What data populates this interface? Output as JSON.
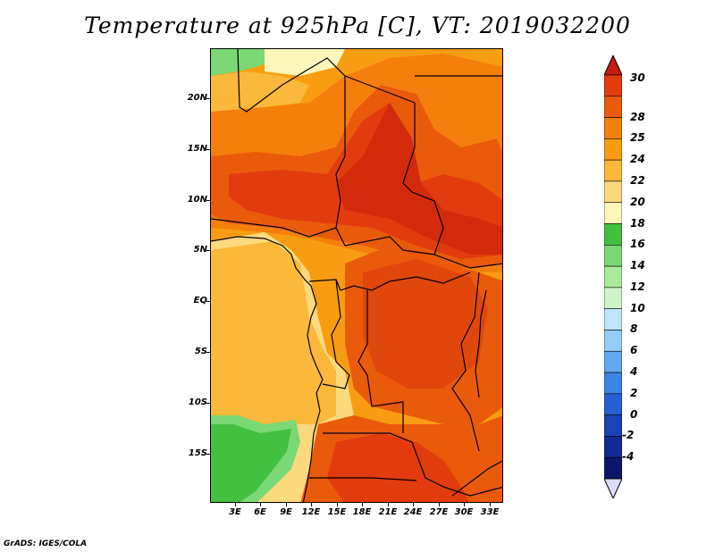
{
  "title": "Temperature at 925hPa [C], VT: 2019032200",
  "credit": "GrADS: IGES/COLA",
  "map": {
    "type": "filled-contour",
    "variable": "Temperature at 925hPa",
    "units": "C",
    "valid_time": "2019032200",
    "lat_ticks": [
      "20N",
      "15N",
      "10N",
      "5N",
      "EQ",
      "5S",
      "10S",
      "15S"
    ],
    "lon_ticks": [
      "3E",
      "6E",
      "9E",
      "12E",
      "15E",
      "18E",
      "21E",
      "24E",
      "27E",
      "30E",
      "33E"
    ],
    "lon_range": [
      0,
      34.5
    ],
    "lat_range": [
      -20,
      24.5
    ]
  },
  "colorbar": {
    "labels": [
      "30",
      "28",
      "25",
      "24",
      "22",
      "20",
      "18",
      "16",
      "14",
      "12",
      "10",
      "8",
      "6",
      "4",
      "2",
      "0",
      "-2",
      "-4"
    ],
    "colors": [
      "#e23b0e",
      "#ea5a0b",
      "#f57f0c",
      "#f89d12",
      "#fbb83a",
      "#fdd97e",
      "#fdf6ba",
      "#44c040",
      "#7ad875",
      "#a9ea9b",
      "#cdf5c5",
      "#bde5fb",
      "#93cdf7",
      "#62a9f1",
      "#3d84e4",
      "#2461d2",
      "#1a44b6",
      "#122a93",
      "#0b1569"
    ],
    "top_triangle_color": "#c71b12",
    "bottom_triangle_color": "#dcdcf8"
  }
}
